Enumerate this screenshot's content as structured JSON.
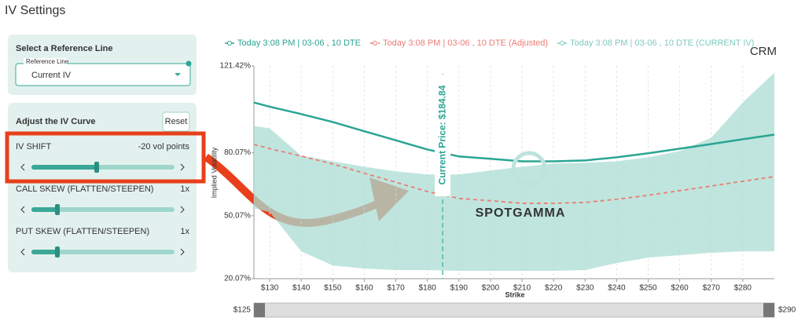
{
  "header": {
    "title": "IV Settings"
  },
  "panel": {
    "reference": {
      "title": "Select a Reference Line",
      "field_label": "Reference Line",
      "field_value": "Current IV"
    },
    "adjust": {
      "title": "Adjust the IV Curve",
      "reset": "Reset",
      "sliders": [
        {
          "label": "IV SHIFT",
          "value_text": "-20 vol points"
        },
        {
          "label": "CALL SKEW (FLATTEN/STEEPEN)",
          "value_text": "1x"
        },
        {
          "label": "PUT SKEW (FLATTEN/STEEPEN)",
          "value_text": "1x"
        }
      ]
    }
  },
  "chart_data": {
    "type": "line",
    "ticker": "CRM",
    "watermark": "SPOTGAMMA",
    "xlabel": "Strike",
    "ylabel": "Implied Volatility",
    "annotation": {
      "text": "Current Price: $184.84",
      "x": 184.84
    },
    "x": [
      125,
      130,
      140,
      150,
      160,
      170,
      180,
      190,
      200,
      210,
      220,
      230,
      240,
      250,
      260,
      270,
      280,
      290
    ],
    "series": [
      {
        "name": "Today 3:08 PM | 03-06 , 10 DTE",
        "color": "#2aa594",
        "style": "solid",
        "values": [
          104,
          102,
          98.5,
          94.7,
          90.3,
          86,
          81.6,
          78.3,
          77.2,
          76,
          76,
          76.4,
          77.9,
          79.8,
          82,
          84.2,
          86.5,
          88.7
        ]
      },
      {
        "name": "Today 3:08 PM | 03-06 , 10 DTE (Adjusted)",
        "color": "#ec7c74",
        "style": "dashed",
        "values": [
          84,
          82,
          78.5,
          74.7,
          70.3,
          66,
          61.6,
          58.3,
          57.2,
          56,
          56,
          56.4,
          57.9,
          59.8,
          62,
          64.2,
          66.5,
          68.7
        ]
      },
      {
        "name": "Today 3:08 PM | 03-06 , 10 DTE (CURRENT IV)",
        "color": "#a9dcd3",
        "style": "band",
        "values": [
          92.8,
          91.7,
          78.7,
          76,
          73.4,
          71.2,
          69.7,
          69.7,
          71.6,
          73.4,
          74.9,
          75.3,
          76,
          77.9,
          80.9,
          87.2,
          104,
          118.2
        ],
        "lower": [
          53.6,
          51.8,
          33.1,
          26.4,
          24.9,
          24.2,
          24.2,
          23.8,
          23.8,
          23.8,
          23.8,
          24.2,
          27.5,
          30.1,
          31.3,
          32.4,
          33.1,
          33.1
        ]
      }
    ],
    "xlim": [
      125,
      290
    ],
    "ylim": [
      20.07,
      121.42
    ],
    "xticks": [
      {
        "value": 130,
        "label": "$130"
      },
      {
        "value": 140,
        "label": "$140"
      },
      {
        "value": 150,
        "label": "$150"
      },
      {
        "value": 160,
        "label": "$160"
      },
      {
        "value": 170,
        "label": "$170"
      },
      {
        "value": 180,
        "label": "$180"
      },
      {
        "value": 190,
        "label": "$190"
      },
      {
        "value": 200,
        "label": "$200"
      },
      {
        "value": 210,
        "label": "$210"
      },
      {
        "value": 220,
        "label": "$220"
      },
      {
        "value": 230,
        "label": "$230"
      },
      {
        "value": 240,
        "label": "$240"
      },
      {
        "value": 250,
        "label": "$250"
      },
      {
        "value": 260,
        "label": "$260"
      },
      {
        "value": 270,
        "label": "$270"
      },
      {
        "value": 280,
        "label": "$280"
      }
    ],
    "yticks": [
      {
        "value": 20.07,
        "label": "20.07%"
      },
      {
        "value": 50.07,
        "label": "50.07%"
      },
      {
        "value": 80.07,
        "label": "80.07%"
      },
      {
        "value": 121.42,
        "label": "121.42%"
      }
    ],
    "grid": true,
    "range_slider": {
      "min_label": "$125",
      "max_label": "$290"
    }
  }
}
